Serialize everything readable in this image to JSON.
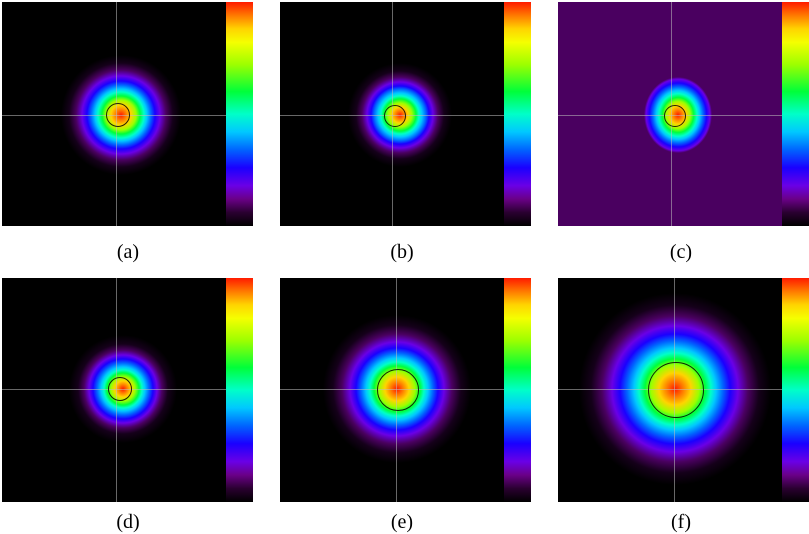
{
  "panels": [
    {
      "label": "(a)"
    },
    {
      "label": "(b)"
    },
    {
      "label": "(c)"
    },
    {
      "label": "(d)"
    },
    {
      "label": "(e)"
    },
    {
      "label": "(f)"
    }
  ],
  "colorbar_colors": [
    "#ff1a00",
    "#ffd400",
    "#00ff3a",
    "#00c8ff",
    "#1a00ff",
    "#6a0087",
    "#000000"
  ]
}
